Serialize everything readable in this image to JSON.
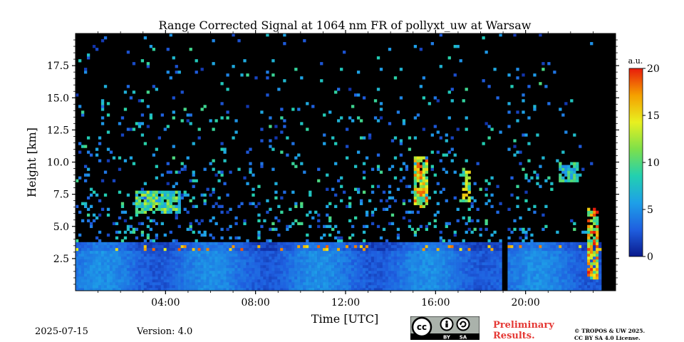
{
  "chart_data": {
    "type": "heatmap",
    "title": "Range Corrected Signal at 1064 nm FR of pollyxt_uw at Warsaw",
    "xlabel": "Time [UTC]",
    "ylabel": "Height [km]",
    "xlim_hours": [
      0,
      24
    ],
    "ylim_km": [
      0,
      20
    ],
    "x_ticks": [
      {
        "value": 4,
        "label": "04:00"
      },
      {
        "value": 8,
        "label": "08:00"
      },
      {
        "value": 12,
        "label": "12:00"
      },
      {
        "value": 16,
        "label": "16:00"
      },
      {
        "value": 20,
        "label": "20:00"
      }
    ],
    "y_ticks": [
      {
        "value": 2.5,
        "label": "2.5"
      },
      {
        "value": 5,
        "label": "5.0"
      },
      {
        "value": 7.5,
        "label": "7.5"
      },
      {
        "value": 10,
        "label": "10.0"
      },
      {
        "value": 12.5,
        "label": "12.5"
      },
      {
        "value": 15,
        "label": "15.0"
      },
      {
        "value": 17.5,
        "label": "17.5"
      }
    ],
    "colorbar": {
      "unit": "a.u.",
      "range": [
        0,
        20
      ],
      "ticks": [
        {
          "value": 0,
          "label": "0"
        },
        {
          "value": 5,
          "label": "5"
        },
        {
          "value": 10,
          "label": "10"
        },
        {
          "value": 15,
          "label": "15"
        },
        {
          "value": 20,
          "label": "20"
        }
      ],
      "colors": [
        "#0a1a8c",
        "#1f5fe0",
        "#1ea0e8",
        "#22d0b0",
        "#7ee04a",
        "#e8f020",
        "#f5a000",
        "#e81c0c"
      ]
    },
    "background_color": "#000000",
    "features": [
      {
        "name": "boundary layer",
        "t_start": 0,
        "t_end": 23.3,
        "h_base": 0,
        "h_top": 3.8,
        "intensity": 3
      },
      {
        "name": "aerosol layer",
        "t_start": 2.7,
        "t_end": 4.7,
        "h_base": 6.0,
        "h_top": 7.7,
        "intensity": 11
      },
      {
        "name": "cloud",
        "t_start": 15.0,
        "t_end": 15.7,
        "h_base": 6.5,
        "h_top": 10.5,
        "intensity": 16
      },
      {
        "name": "cloud",
        "t_start": 17.2,
        "t_end": 17.6,
        "h_base": 7.0,
        "h_top": 9.5,
        "intensity": 14
      },
      {
        "name": "cloud",
        "t_start": 22.8,
        "t_end": 23.3,
        "h_base": 1.0,
        "h_top": 6.5,
        "intensity": 17
      },
      {
        "name": "cirrus",
        "t_start": 21.5,
        "t_end": 22.3,
        "h_base": 8.5,
        "h_top": 10.0,
        "intensity": 9
      }
    ],
    "no_signal_gap": {
      "t_start": 18.9,
      "t_end": 19.2
    }
  },
  "footer": {
    "date": "2025-07-15",
    "version": "Version: 4.0",
    "preliminary_line1": "Preliminary",
    "preliminary_line2": "Results.",
    "copyright_line1": "© TROPOS & UW 2025.",
    "copyright_line2": "CC BY SA 4.0 License.",
    "license_badge": {
      "cc": "cc",
      "by": "BY",
      "sa": "SA"
    }
  }
}
